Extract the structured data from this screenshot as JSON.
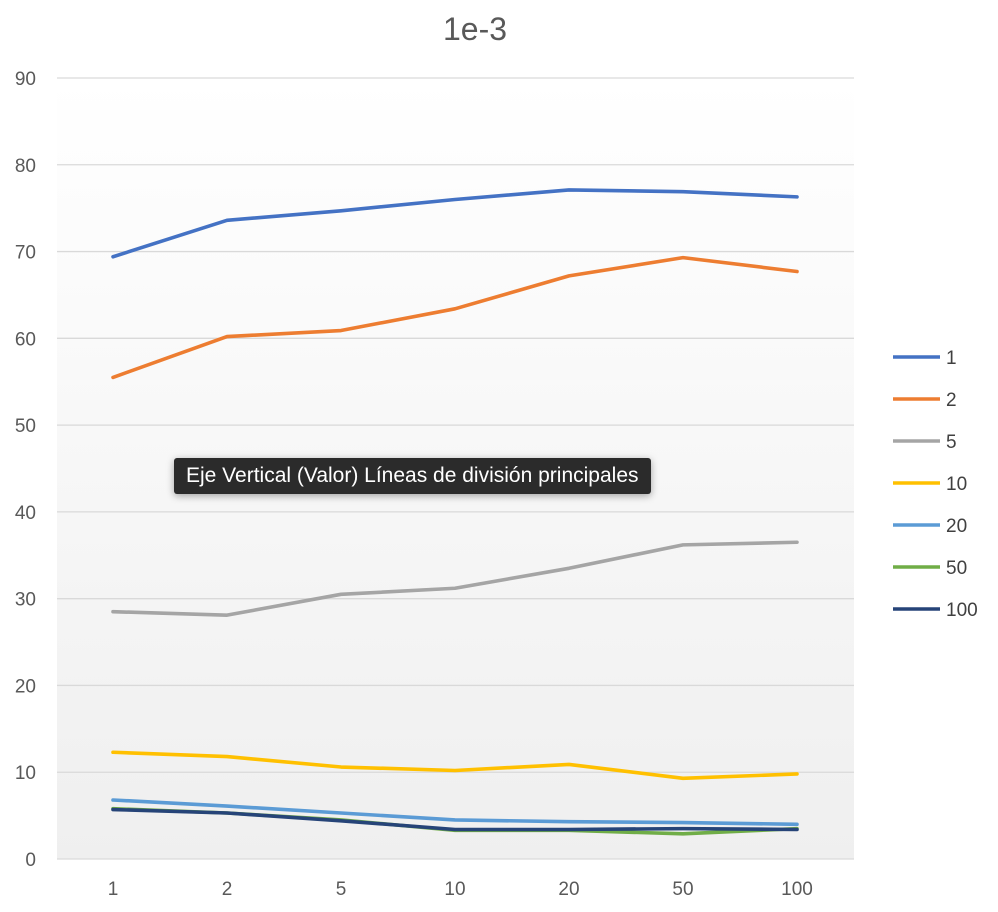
{
  "chart_data": {
    "type": "line",
    "title": "1e-3",
    "categories": [
      "1",
      "2",
      "5",
      "10",
      "20",
      "50",
      "100"
    ],
    "ylim": [
      0,
      90
    ],
    "ytick_step": 10,
    "grid": true,
    "legend_position": "right",
    "series": [
      {
        "name": "1",
        "color": "#4472C4",
        "values": [
          69.4,
          73.6,
          74.7,
          76.0,
          77.1,
          76.9,
          76.3
        ]
      },
      {
        "name": "2",
        "color": "#ED7D31",
        "values": [
          55.5,
          60.2,
          60.9,
          63.4,
          67.2,
          69.3,
          67.7
        ]
      },
      {
        "name": "5",
        "color": "#A5A5A5",
        "values": [
          28.5,
          28.1,
          30.5,
          31.2,
          33.5,
          36.2,
          36.5
        ]
      },
      {
        "name": "10",
        "color": "#FFC000",
        "values": [
          12.3,
          11.8,
          10.6,
          10.2,
          10.9,
          9.3,
          9.8
        ]
      },
      {
        "name": "20",
        "color": "#5B9BD5",
        "values": [
          6.8,
          6.1,
          5.3,
          4.5,
          4.3,
          4.2,
          4.0
        ]
      },
      {
        "name": "50",
        "color": "#70AD47",
        "values": [
          5.8,
          5.3,
          4.5,
          3.3,
          3.3,
          2.9,
          3.5
        ]
      },
      {
        "name": "100",
        "color": "#264478",
        "values": [
          5.7,
          5.3,
          4.4,
          3.4,
          3.4,
          3.5,
          3.4
        ]
      }
    ]
  },
  "tooltip": {
    "text": "Eje Vertical (Valor)  Líneas de división principales"
  }
}
